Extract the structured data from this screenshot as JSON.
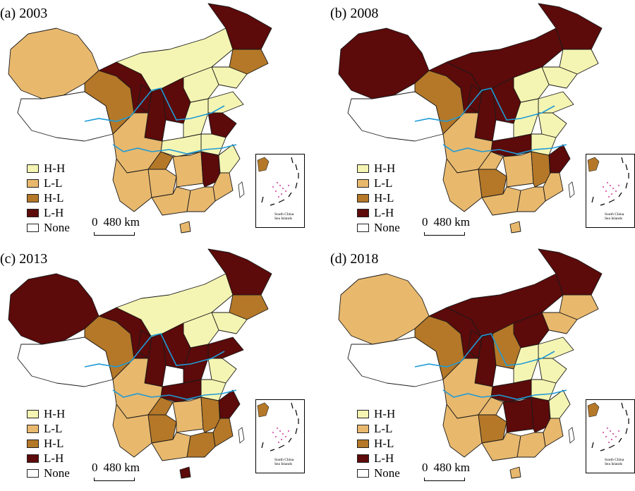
{
  "panels": [
    {
      "title": "(a) 2003",
      "year": "2003"
    },
    {
      "title": "(b) 2008",
      "year": "2008"
    },
    {
      "title": "(c) 2013",
      "year": "2013"
    },
    {
      "title": "(d) 2018",
      "year": "2018"
    }
  ],
  "legend": [
    {
      "label": "H-H",
      "color": "#F5F5B3"
    },
    {
      "label": "L-L",
      "color": "#E8B86D"
    },
    {
      "label": "H-L",
      "color": "#B47828"
    },
    {
      "label": "L-H",
      "color": "#5C0A0A"
    },
    {
      "label": "None",
      "color": "#FFFFFF"
    }
  ],
  "scale": {
    "zero": "0",
    "distance": "480 km"
  },
  "inset": {
    "label_line1": "South China",
    "label_line2": "Sea Islands"
  },
  "colors": {
    "river": "#1E9BD7",
    "border": "#1a1a1a",
    "islands": "#C0007A"
  }
}
